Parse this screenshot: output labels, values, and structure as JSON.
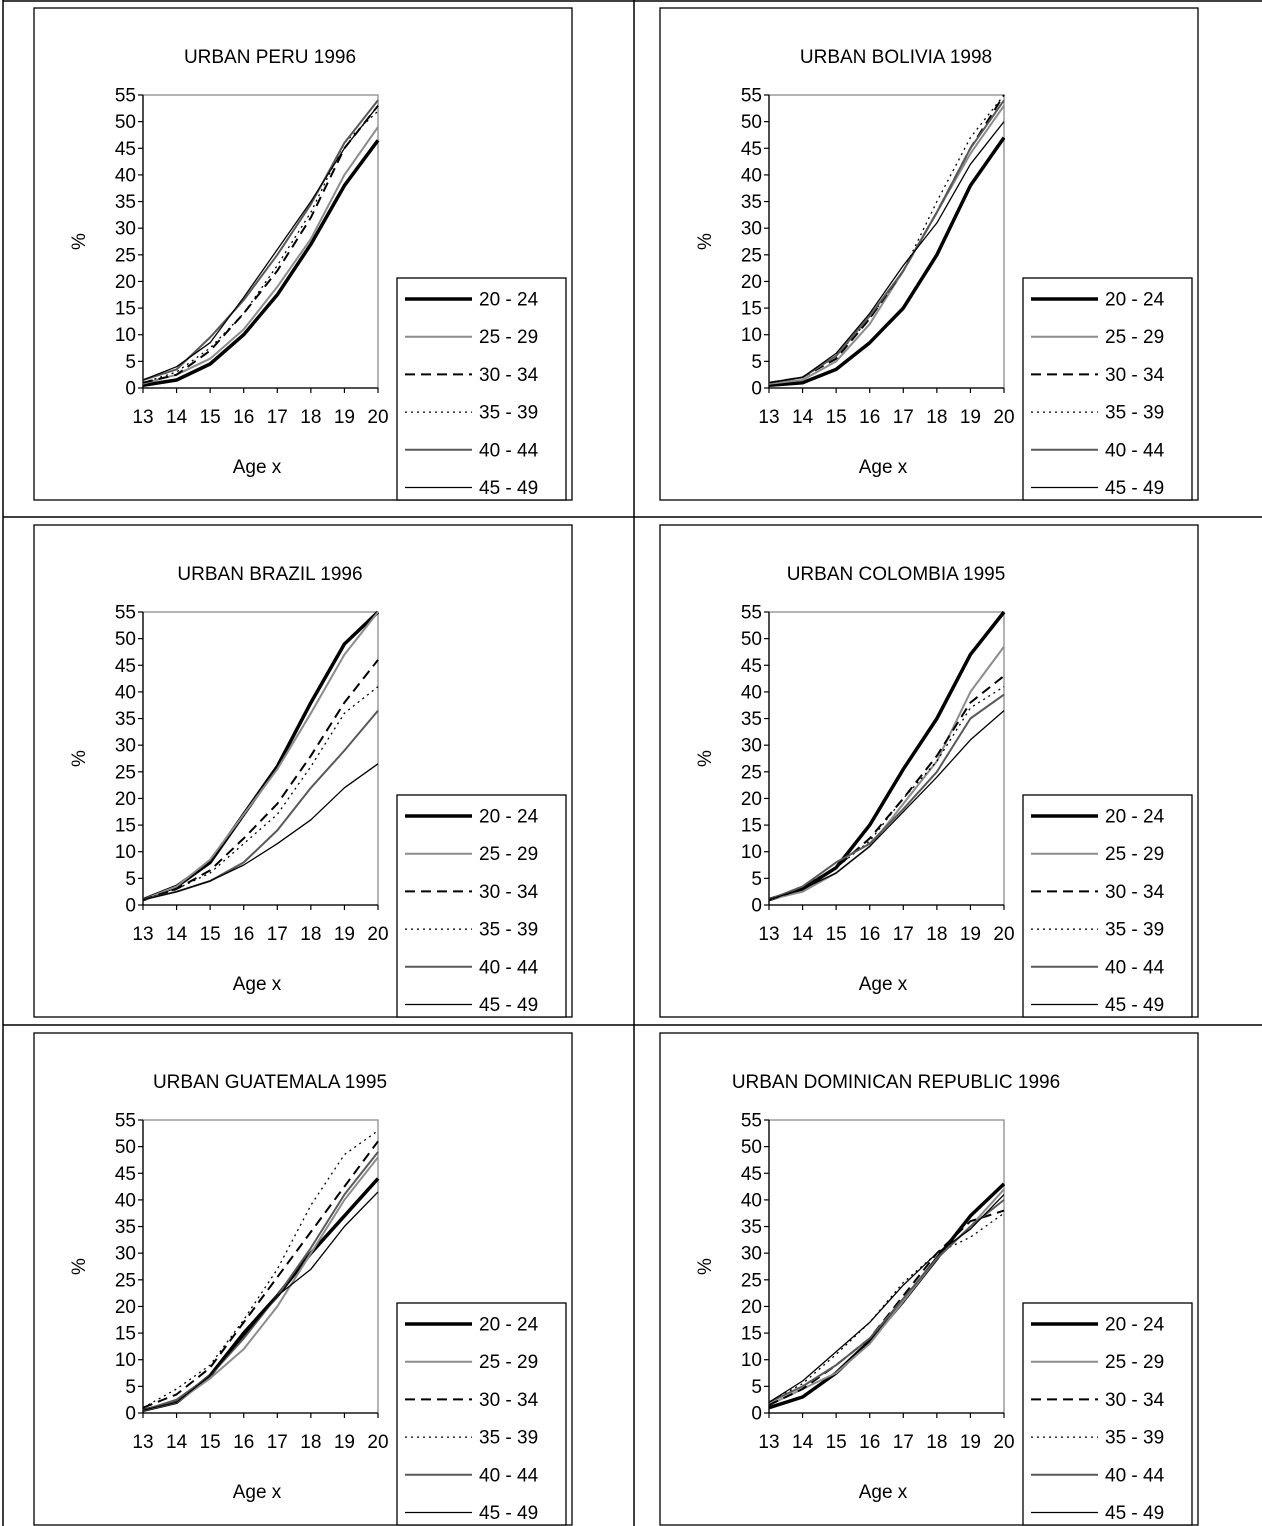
{
  "legend_labels": [
    "20 - 24",
    "25 - 29",
    "30 - 34",
    "35 - 39",
    "40 - 44",
    "45 - 49"
  ],
  "series_styles": [
    {
      "color": "#000000",
      "dash": "solid",
      "weight": "heavy"
    },
    {
      "color": "#8c8c8c",
      "dash": "solid",
      "weight": "medium"
    },
    {
      "color": "#000000",
      "dash": "dashed",
      "weight": "medium"
    },
    {
      "color": "#000000",
      "dash": "dotted",
      "weight": "thin"
    },
    {
      "color": "#595959",
      "dash": "solid",
      "weight": "medium"
    },
    {
      "color": "#000000",
      "dash": "solid",
      "weight": "thin"
    }
  ],
  "chart_data": [
    {
      "type": "line",
      "title": "URBAN PERU 1996",
      "xlabel": "Age x",
      "ylabel": "%",
      "x": [
        13,
        14,
        15,
        16,
        17,
        18,
        19,
        20
      ],
      "ylim": [
        0,
        55
      ],
      "yticks": [
        0,
        5,
        10,
        15,
        20,
        25,
        30,
        35,
        40,
        45,
        50,
        55
      ],
      "grid": false,
      "legend": "right",
      "series": [
        {
          "name": "20 - 24",
          "values": [
            0.5,
            1.5,
            4.5,
            10,
            17.5,
            27,
            38,
            46.5
          ]
        },
        {
          "name": "25 - 29",
          "values": [
            0.8,
            2.5,
            5.5,
            11,
            19,
            28,
            40,
            49
          ]
        },
        {
          "name": "30 - 34",
          "values": [
            1,
            2.5,
            7,
            14,
            22,
            32,
            45,
            53
          ]
        },
        {
          "name": "35 - 39",
          "values": [
            1,
            3,
            7.5,
            14,
            23,
            33,
            46,
            52
          ]
        },
        {
          "name": "40 - 44",
          "values": [
            1.5,
            3.5,
            9.5,
            16.5,
            25,
            34.5,
            46,
            54
          ]
        },
        {
          "name": "45 - 49",
          "values": [
            1.5,
            4,
            8.5,
            17,
            26,
            35,
            45,
            53
          ]
        }
      ]
    },
    {
      "type": "line",
      "title": "URBAN BOLIVIA 1998",
      "xlabel": "Age x",
      "ylabel": "%",
      "x": [
        13,
        14,
        15,
        16,
        17,
        18,
        19,
        20
      ],
      "ylim": [
        0,
        55
      ],
      "yticks": [
        0,
        5,
        10,
        15,
        20,
        25,
        30,
        35,
        40,
        45,
        50,
        55
      ],
      "grid": false,
      "legend": "right",
      "series": [
        {
          "name": "20 - 24",
          "values": [
            0.5,
            1,
            3.5,
            8.5,
            15,
            25,
            38,
            47
          ]
        },
        {
          "name": "25 - 29",
          "values": [
            0.8,
            1.5,
            5,
            12,
            22,
            33,
            44,
            53
          ]
        },
        {
          "name": "30 - 34",
          "values": [
            1,
            2,
            5.5,
            13,
            22,
            33,
            45,
            55
          ]
        },
        {
          "name": "35 - 39",
          "values": [
            1,
            2,
            6,
            13,
            22,
            35,
            47,
            55
          ]
        },
        {
          "name": "40 - 44",
          "values": [
            1,
            2,
            6,
            13.5,
            22,
            33,
            45,
            54
          ]
        },
        {
          "name": "45 - 49",
          "values": [
            1,
            2,
            6.5,
            14,
            23,
            31,
            42,
            50
          ]
        }
      ]
    },
    {
      "type": "line",
      "title": "URBAN BRAZIL 1996",
      "xlabel": "Age x",
      "ylabel": "%",
      "x": [
        13,
        14,
        15,
        16,
        17,
        18,
        19,
        20
      ],
      "ylim": [
        0,
        55
      ],
      "yticks": [
        0,
        5,
        10,
        15,
        20,
        25,
        30,
        35,
        40,
        45,
        50,
        55
      ],
      "grid": false,
      "legend": "right",
      "series": [
        {
          "name": "20 - 24",
          "values": [
            1,
            3.5,
            8,
            17,
            26,
            38,
            49,
            55
          ]
        },
        {
          "name": "25 - 29",
          "values": [
            1,
            3.5,
            8.5,
            17,
            25.5,
            36,
            47,
            55
          ]
        },
        {
          "name": "30 - 34",
          "values": [
            1,
            3,
            6.5,
            12.5,
            19,
            28,
            38,
            46
          ]
        },
        {
          "name": "35 - 39",
          "values": [
            1,
            3,
            6,
            11.5,
            17,
            26,
            36,
            41
          ]
        },
        {
          "name": "40 - 44",
          "values": [
            1,
            2.5,
            4.5,
            8,
            14,
            22,
            29,
            36.5
          ]
        },
        {
          "name": "45 - 49",
          "values": [
            1,
            2.5,
            4.5,
            7.5,
            11.5,
            16,
            22,
            26.5
          ]
        }
      ]
    },
    {
      "type": "line",
      "title": "URBAN COLOMBIA 1995",
      "xlabel": "Age x",
      "ylabel": "%",
      "x": [
        13,
        14,
        15,
        16,
        17,
        18,
        19,
        20
      ],
      "ylim": [
        0,
        55
      ],
      "yticks": [
        0,
        5,
        10,
        15,
        20,
        25,
        30,
        35,
        40,
        45,
        50,
        55
      ],
      "grid": false,
      "legend": "right",
      "series": [
        {
          "name": "20 - 24",
          "values": [
            1,
            3,
            7,
            15,
            25.5,
            35,
            47,
            55
          ]
        },
        {
          "name": "25 - 29",
          "values": [
            1,
            2.5,
            6,
            11,
            19,
            27,
            40,
            48.5
          ]
        },
        {
          "name": "30 - 34",
          "values": [
            1,
            3,
            7,
            12.5,
            20,
            28,
            38,
            43
          ]
        },
        {
          "name": "35 - 39",
          "values": [
            1,
            3.5,
            7,
            12,
            20,
            27,
            37,
            41
          ]
        },
        {
          "name": "40 - 44",
          "values": [
            1,
            3.5,
            8,
            11.5,
            18,
            25,
            35,
            39.5
          ]
        },
        {
          "name": "45 - 49",
          "values": [
            1,
            3,
            6,
            11,
            17.5,
            24,
            31,
            36.5
          ]
        }
      ]
    },
    {
      "type": "line",
      "title": "URBAN GUATEMALA 1995",
      "xlabel": "Age x",
      "ylabel": "%",
      "x": [
        13,
        14,
        15,
        16,
        17,
        18,
        19,
        20
      ],
      "ylim": [
        0,
        55
      ],
      "yticks": [
        0,
        5,
        10,
        15,
        20,
        25,
        30,
        35,
        40,
        45,
        50,
        55
      ],
      "grid": false,
      "legend": "right",
      "series": [
        {
          "name": "20 - 24",
          "values": [
            0.5,
            2,
            7,
            15,
            22,
            30,
            37,
            44
          ]
        },
        {
          "name": "25 - 29",
          "values": [
            0.5,
            2,
            6.5,
            12,
            20,
            30,
            40,
            48
          ]
        },
        {
          "name": "30 - 34",
          "values": [
            1,
            3.5,
            8.5,
            17,
            25.5,
            34,
            42.5,
            51
          ]
        },
        {
          "name": "35 - 39",
          "values": [
            1,
            4.5,
            9,
            17.5,
            27,
            39,
            48.5,
            53
          ]
        },
        {
          "name": "40 - 44",
          "values": [
            0.5,
            2.5,
            7,
            14,
            22,
            31,
            41,
            49
          ]
        },
        {
          "name": "45 - 49",
          "values": [
            0.5,
            2,
            7,
            14.5,
            22,
            27,
            35,
            41.5
          ]
        }
      ]
    },
    {
      "type": "line",
      "title": "URBAN DOMINICAN REPUBLIC 1996",
      "xlabel": "Age x",
      "ylabel": "%",
      "x": [
        13,
        14,
        15,
        16,
        17,
        18,
        19,
        20
      ],
      "ylim": [
        0,
        55
      ],
      "yticks": [
        0,
        5,
        10,
        15,
        20,
        25,
        30,
        35,
        40,
        45,
        50,
        55
      ],
      "grid": false,
      "legend": "right",
      "series": [
        {
          "name": "20 - 24",
          "values": [
            1,
            3,
            7.5,
            13.5,
            21,
            29,
            37,
            43
          ]
        },
        {
          "name": "25 - 29",
          "values": [
            1.5,
            4.5,
            7.5,
            13,
            21,
            29,
            35,
            42
          ]
        },
        {
          "name": "30 - 34",
          "values": [
            1.5,
            4.5,
            9,
            14,
            22,
            30,
            36,
            38
          ]
        },
        {
          "name": "35 - 39",
          "values": [
            2,
            5.5,
            11,
            17,
            24.5,
            30,
            33,
            37.5
          ]
        },
        {
          "name": "40 - 44",
          "values": [
            2,
            5,
            9,
            14,
            21.5,
            29,
            35,
            40
          ]
        },
        {
          "name": "45 - 49",
          "values": [
            2,
            6,
            11.5,
            17,
            24,
            30,
            34.5,
            41
          ]
        }
      ]
    }
  ]
}
